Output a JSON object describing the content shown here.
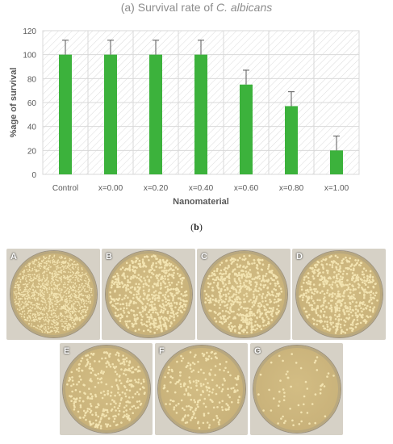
{
  "figure": {
    "title_prefix": "(a) Survival rate of ",
    "title_species": "C. albicans",
    "panel_b_label": "b"
  },
  "chart_data": {
    "type": "bar",
    "title": "(a) Survival rate of C. albicans",
    "xlabel": "Nanomaterial",
    "ylabel": "%age of survival",
    "categories": [
      "Control",
      "x=0.00",
      "x=0.20",
      "x=0.40",
      "x=0.60",
      "x=0.80",
      "x=1.00"
    ],
    "values": [
      100,
      100,
      100,
      100,
      75,
      57,
      20
    ],
    "error_plus": [
      12,
      12,
      12,
      12,
      12,
      12,
      12
    ],
    "ylim": [
      0,
      120
    ],
    "yticks": [
      0,
      20,
      40,
      60,
      80,
      100,
      120
    ],
    "grid": true,
    "legend": "none",
    "bar_color": "#3cb23c"
  },
  "plates": [
    {
      "label": "A",
      "density": 1400
    },
    {
      "label": "B",
      "density": 620
    },
    {
      "label": "C",
      "density": 600
    },
    {
      "label": "D",
      "density": 560
    },
    {
      "label": "E",
      "density": 330
    },
    {
      "label": "F",
      "density": 220
    },
    {
      "label": "G",
      "density": 60
    }
  ],
  "colors": {
    "agar": "#c9b27a",
    "colony": "#f2e3b0",
    "plate_bg": "#d6d1c6"
  }
}
